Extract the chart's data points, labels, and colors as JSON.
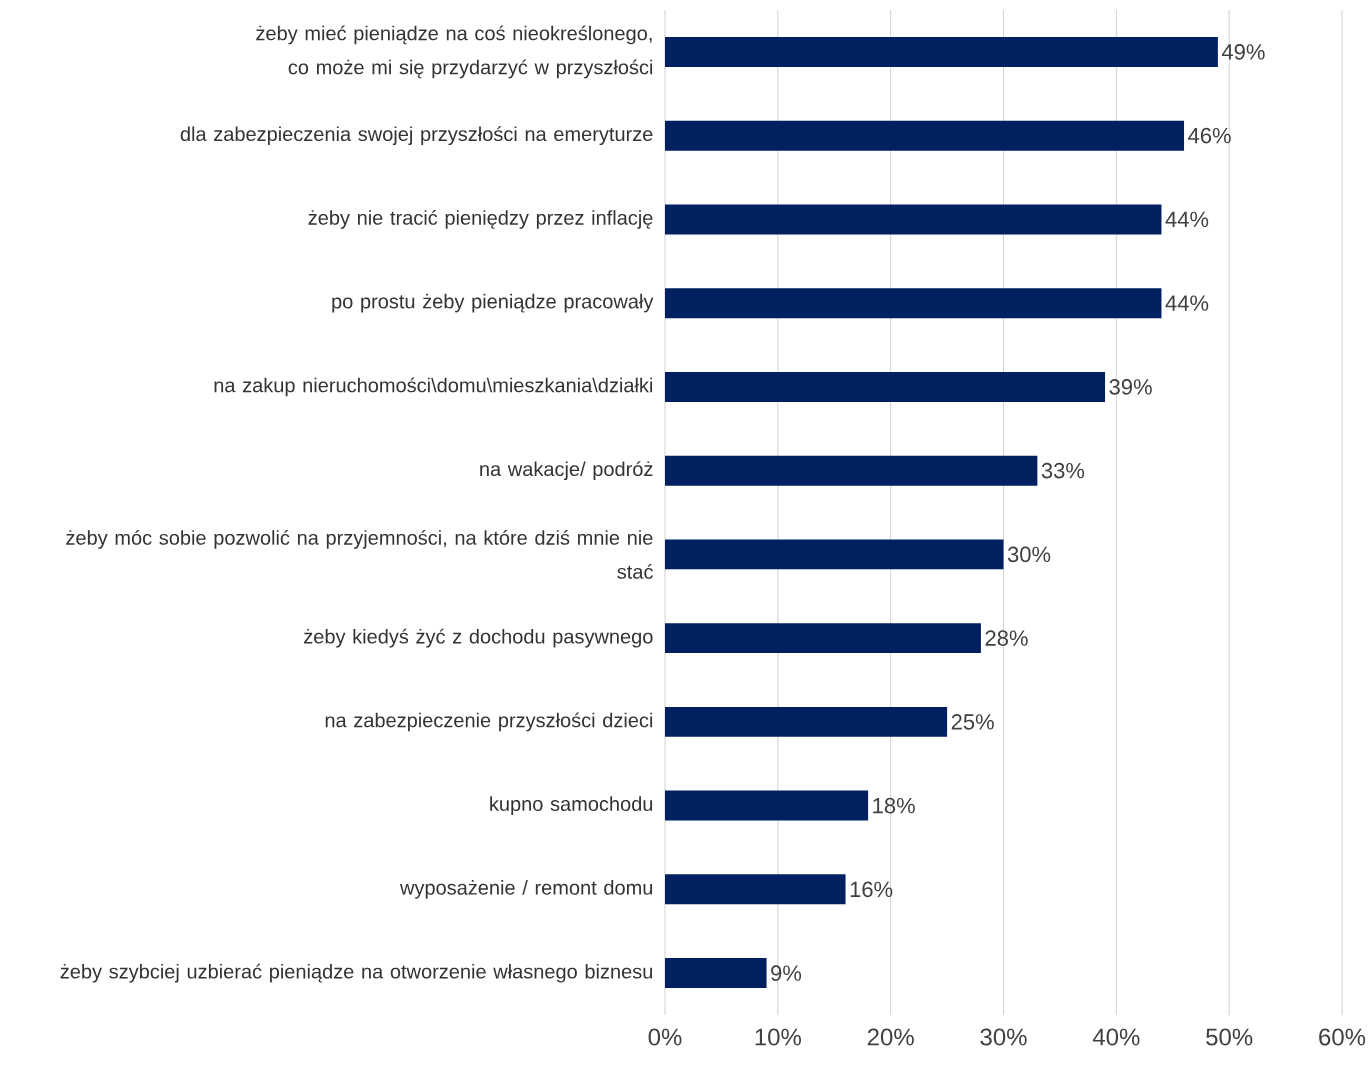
{
  "chart_data": {
    "type": "bar",
    "orientation": "horizontal",
    "categories": [
      "żeby mieć pieniądze na coś nieokreślonego, co może mi się przydarzyć w przyszłości",
      "dla zabezpieczenia swojej przyszłości na emeryturze",
      "żeby nie tracić pieniędzy przez inflację",
      "po prostu żeby pieniądze pracowały",
      "na zakup nieruchomości\\domu\\mieszkania\\działki",
      "na wakacje/ podróż",
      "żeby móc sobie pozwolić na przyjemności, na które dziś mnie nie stać",
      "żeby kiedyś żyć z dochodu pasywnego",
      "na zabezpieczenie przyszłości dzieci",
      "kupno samochodu",
      "wyposażenie / remont domu",
      "żeby szybciej uzbierać pieniądze na otworzenie własnego biznesu"
    ],
    "values": [
      49,
      46,
      44,
      44,
      39,
      33,
      30,
      28,
      25,
      18,
      16,
      9
    ],
    "value_labels": [
      "49%",
      "46%",
      "44%",
      "44%",
      "39%",
      "33%",
      "30%",
      "28%",
      "25%",
      "18%",
      "16%",
      "9%"
    ],
    "color": "#002060",
    "xlim": [
      0,
      60
    ],
    "xticks": [
      {
        "value": 0,
        "label": "0%"
      },
      {
        "value": 10,
        "label": "10%"
      },
      {
        "value": 20,
        "label": "20%"
      },
      {
        "value": 30,
        "label": "30%"
      },
      {
        "value": 40,
        "label": "40%"
      },
      {
        "value": 50,
        "label": "50%"
      },
      {
        "value": 60,
        "label": "60%"
      }
    ],
    "grid": "x"
  }
}
